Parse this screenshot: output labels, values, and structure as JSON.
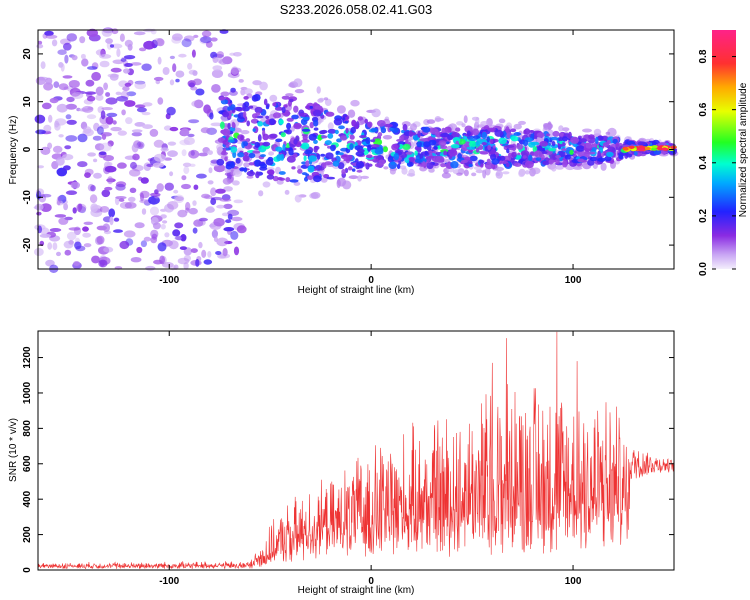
{
  "title": "S233.2026.058.02.41.G03",
  "chart_data": [
    {
      "type": "heatmap",
      "name": "spectrogram",
      "xlabel": "Height of straight line (km)",
      "ylabel": "Frequency (Hz)",
      "xlim": [
        -165,
        150
      ],
      "ylim": [
        -25,
        25
      ],
      "xticks": [
        -100,
        0,
        100
      ],
      "xtick_labels": [
        "-100",
        "0",
        "100"
      ],
      "yticks": [
        -20,
        -10,
        0,
        10,
        20
      ],
      "ytick_labels": [
        "-20",
        "-10",
        "0",
        "10",
        "20"
      ],
      "noise_region_x": [
        -165,
        -70
      ],
      "signal_track": {
        "x": [
          -75,
          -60,
          -40,
          -20,
          0,
          20,
          40,
          60,
          80,
          100,
          120,
          130,
          140,
          150
        ],
        "frequency_center": [
          4,
          3,
          2,
          1,
          1,
          0.5,
          0.5,
          0.5,
          0.3,
          0,
          0,
          0.2,
          0.3,
          0.3
        ],
        "frequency_halfwidth": [
          7,
          8,
          9,
          7,
          5,
          4,
          4,
          4,
          3.5,
          3,
          2.5,
          1.2,
          1.0,
          0.8
        ]
      },
      "colorbar": {
        "label": "Normalized spectral amplitude",
        "range": [
          0,
          0.9
        ],
        "ticks": [
          0,
          0.2,
          0.4,
          0.6,
          0.8
        ],
        "tick_labels": [
          "0.0",
          "0.2",
          "0.4",
          "0.6",
          "0.8"
        ]
      }
    },
    {
      "type": "line",
      "name": "snr",
      "xlabel": "Height of straight line (km)",
      "ylabel": "SNR (10 * v/v)",
      "xlim": [
        -165,
        150
      ],
      "ylim": [
        0,
        1350
      ],
      "xticks": [
        -100,
        0,
        100
      ],
      "xtick_labels": [
        "-100",
        "0",
        "100"
      ],
      "yticks": [
        0,
        200,
        400,
        600,
        800,
        1000,
        1200
      ],
      "ytick_labels": [
        "0",
        "200",
        "400",
        "600",
        "800",
        "1000",
        "1200"
      ],
      "envelope": {
        "x": [
          -165,
          -60,
          -50,
          -40,
          -30,
          -20,
          -10,
          0,
          20,
          40,
          60,
          80,
          100,
          120,
          128,
          140,
          150
        ],
        "baseline": [
          20,
          20,
          60,
          120,
          180,
          200,
          220,
          220,
          240,
          240,
          250,
          240,
          250,
          280,
          450,
          520,
          540
        ],
        "peak": [
          40,
          50,
          250,
          400,
          450,
          500,
          600,
          700,
          800,
          900,
          1050,
          1100,
          1050,
          1000,
          700,
          650,
          620
        ]
      },
      "notable_peaks": [
        {
          "x": 67,
          "y": 1310
        },
        {
          "x": 92,
          "y": 1345
        },
        {
          "x": 60,
          "y": 1170
        },
        {
          "x": 102,
          "y": 1180
        }
      ],
      "color": "#ee3333"
    }
  ]
}
